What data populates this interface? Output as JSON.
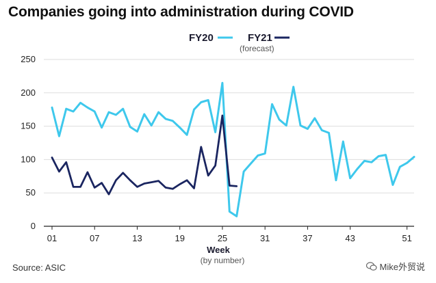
{
  "title": "Companies going into administration during COVID",
  "source": "Source: ASIC",
  "watermark": "Mike外贸说",
  "colors": {
    "fy20": "#3ec8ec",
    "fy21": "#1a2560",
    "grid": "#dddddd",
    "axis": "#222222"
  },
  "chart_data": {
    "type": "line",
    "title": "Companies going into administration during COVID",
    "xlabel": "Week",
    "xlabel_sub": "(by number)",
    "ylabel": "",
    "xlim": [
      1,
      52
    ],
    "ylim": [
      0,
      250
    ],
    "y_ticks": [
      0,
      50,
      100,
      150,
      200,
      250
    ],
    "x_ticks": [
      1,
      7,
      13,
      19,
      25,
      31,
      37,
      43,
      51
    ],
    "x_tick_labels": [
      "01",
      "07",
      "13",
      "19",
      "25",
      "31",
      "37",
      "43",
      "51"
    ],
    "grid": true,
    "legend_position": "top",
    "series": [
      {
        "name": "FY20",
        "subtitle": "",
        "color": "#3ec8ec",
        "x": [
          1,
          2,
          3,
          4,
          5,
          6,
          7,
          8,
          9,
          10,
          11,
          12,
          13,
          14,
          15,
          16,
          17,
          18,
          19,
          20,
          21,
          22,
          23,
          24,
          25,
          26,
          27,
          28,
          29,
          30,
          31,
          32,
          33,
          34,
          35,
          36,
          37,
          38,
          39,
          40,
          41,
          42,
          43,
          44,
          45,
          46,
          47,
          48,
          49,
          50,
          51,
          52
        ],
        "y": [
          178,
          135,
          176,
          172,
          185,
          178,
          172,
          148,
          171,
          167,
          176,
          149,
          142,
          168,
          151,
          171,
          161,
          158,
          148,
          137,
          175,
          186,
          189,
          141,
          215,
          22,
          15,
          82,
          94,
          106,
          109,
          183,
          160,
          151,
          209,
          151,
          146,
          162,
          144,
          140,
          69,
          127,
          72,
          86,
          98,
          96,
          105,
          107,
          62,
          89,
          95,
          104
        ]
      },
      {
        "name": "FY21",
        "subtitle": "(forecast)",
        "color": "#1a2560",
        "x": [
          1,
          2,
          3,
          4,
          5,
          6,
          7,
          8,
          9,
          10,
          11,
          12,
          13,
          14,
          15,
          16,
          17,
          18,
          19,
          20,
          21,
          22,
          23,
          24,
          25,
          26,
          27
        ],
        "y": [
          103,
          82,
          96,
          59,
          59,
          81,
          58,
          65,
          48,
          69,
          80,
          69,
          59,
          64,
          66,
          68,
          58,
          56,
          63,
          69,
          57,
          119,
          76,
          91,
          166,
          61,
          60
        ]
      }
    ]
  }
}
